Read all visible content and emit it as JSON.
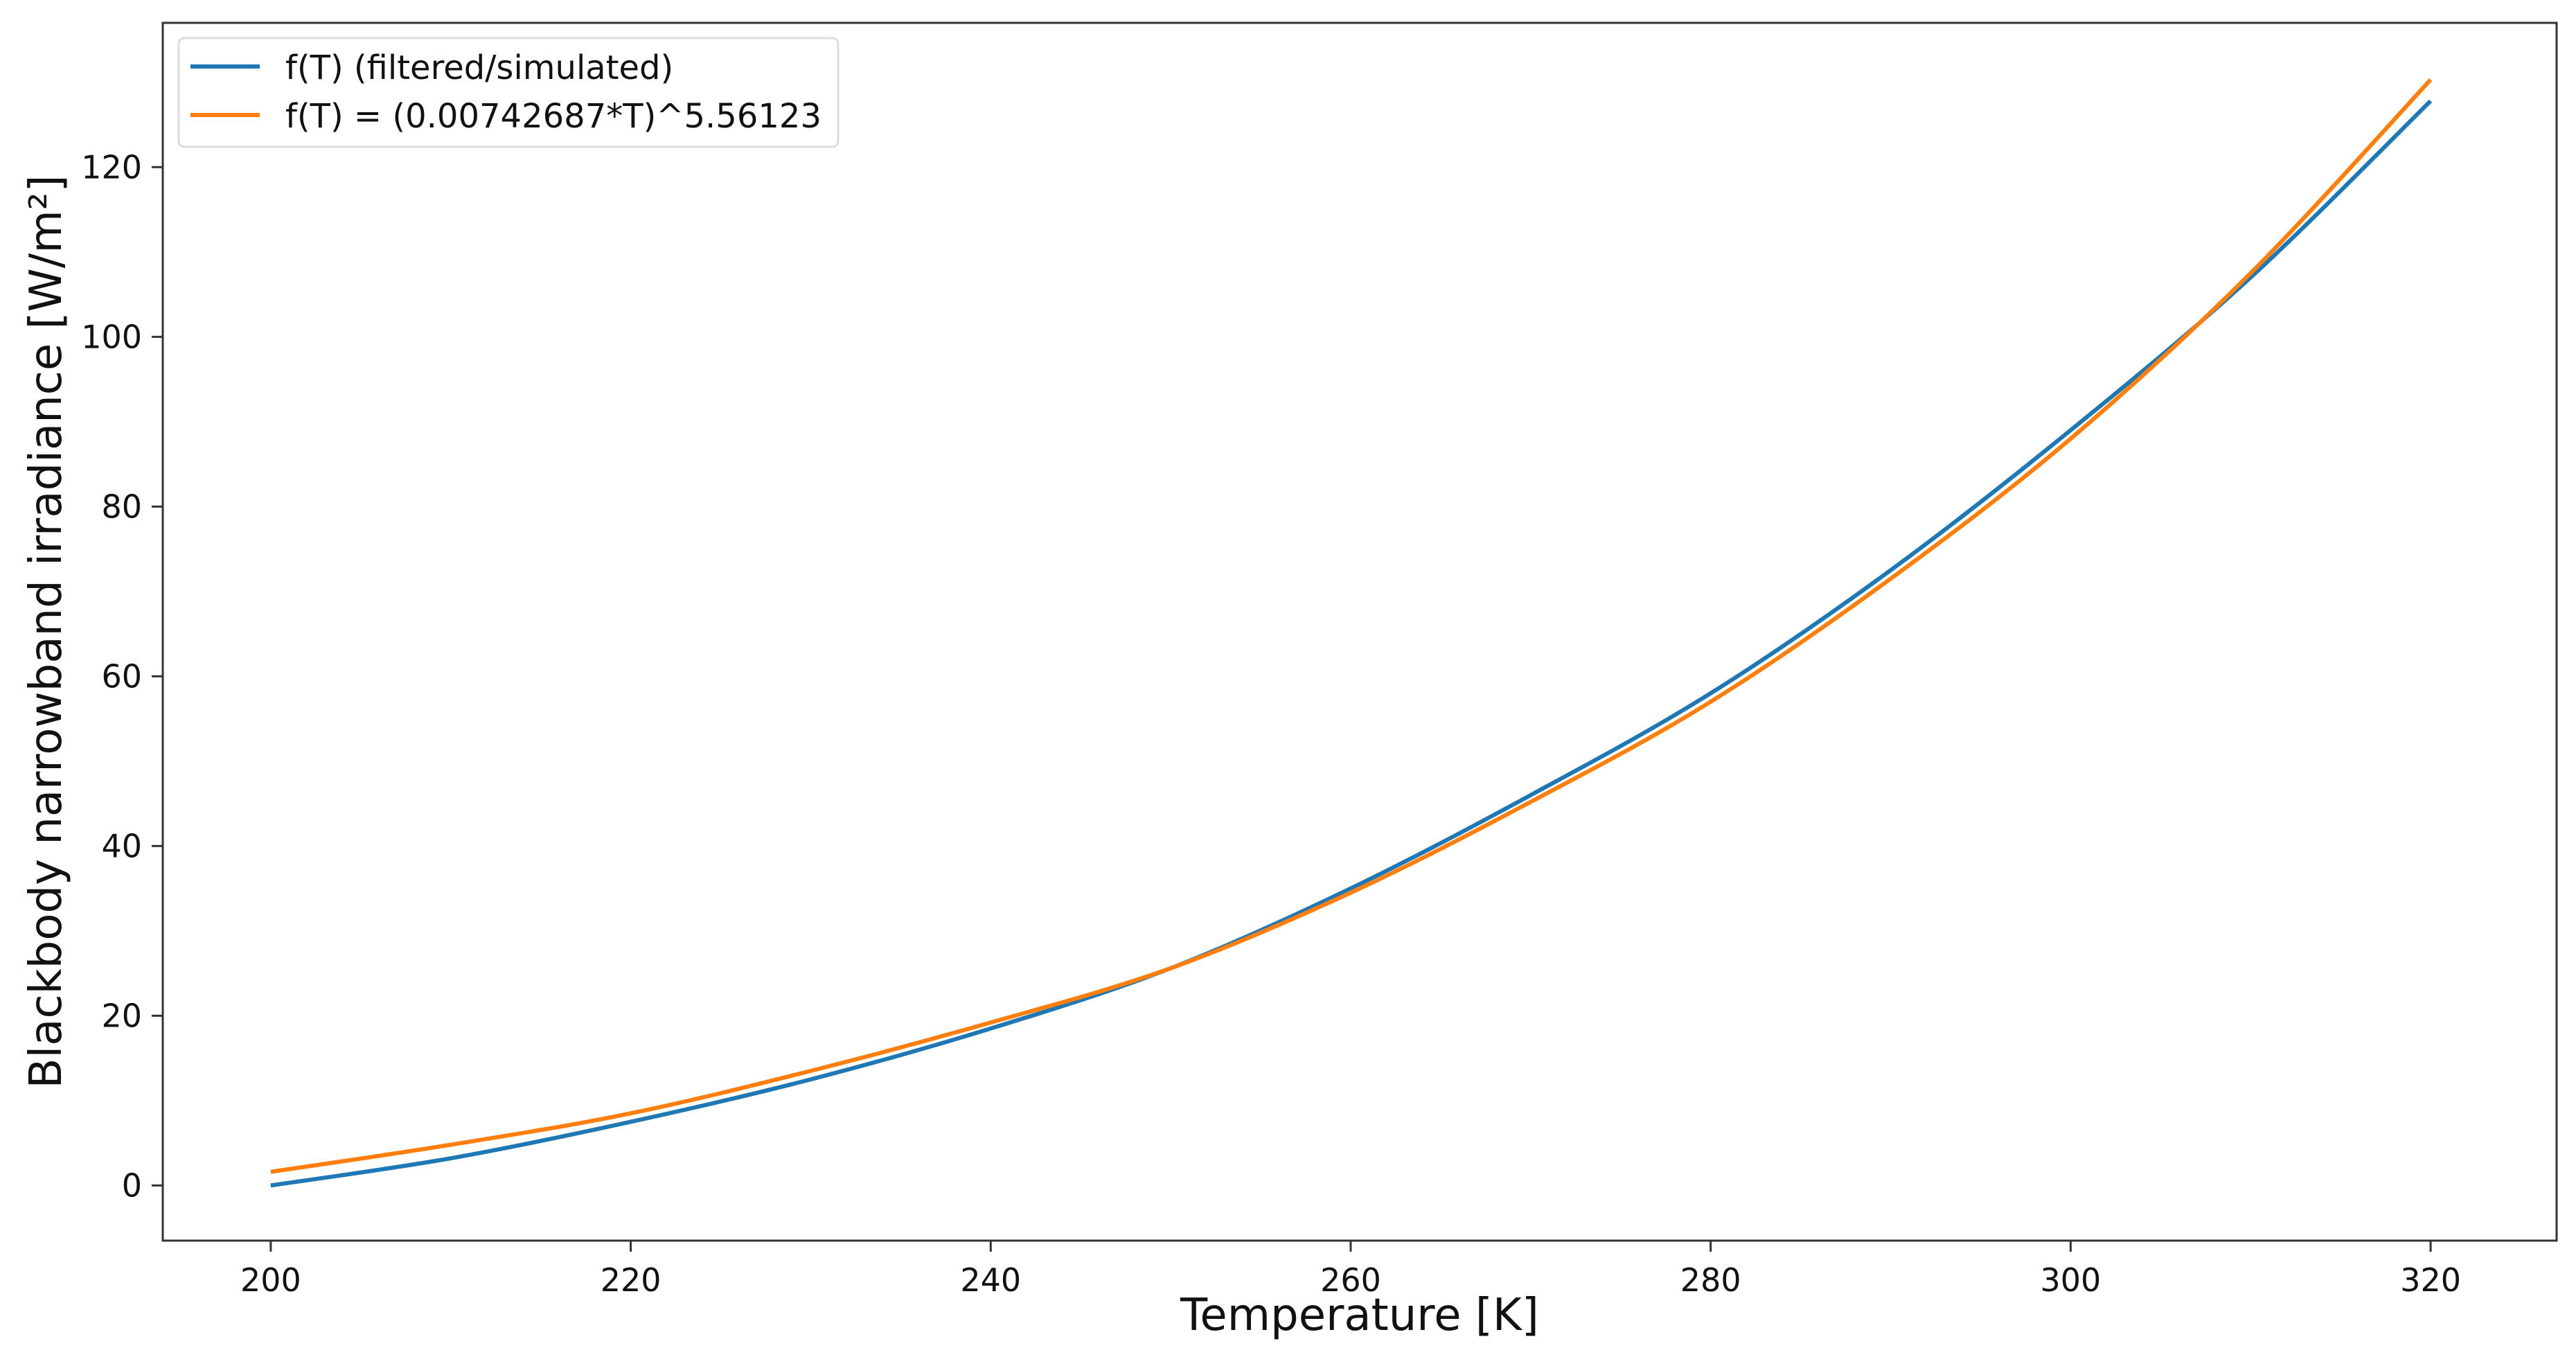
{
  "chart_data": {
    "type": "line",
    "title": "",
    "xlabel": "Temperature [K]",
    "ylabel": "Blackbody narrowband irradiance [W/m²]",
    "xlim": [
      194,
      327
    ],
    "ylim": [
      -6.5,
      137
    ],
    "xticks": [
      200,
      220,
      240,
      260,
      280,
      300,
      320
    ],
    "yticks": [
      0,
      20,
      40,
      60,
      80,
      100,
      120
    ],
    "grid": false,
    "legend_position": "top-left",
    "x": [
      200,
      210,
      220,
      230,
      240,
      250,
      260,
      270,
      280,
      290,
      300,
      310,
      320
    ],
    "series": [
      {
        "name": "f(T) (filtered/simulated)",
        "color": "#1f77b4",
        "values": [
          0,
          3.2,
          7.5,
          12.5,
          18.5,
          25.6,
          35,
          46,
          58,
          72.5,
          89,
          107,
          127.8
        ]
      },
      {
        "name": "f(T) = (0.00742687*T)^5.56123",
        "color": "#ff7f0e",
        "values": [
          1.6,
          4.8,
          8.5,
          13.5,
          19.2,
          25.6,
          34.5,
          45.2,
          57,
          71.5,
          88,
          107.5,
          130.3
        ]
      }
    ]
  }
}
